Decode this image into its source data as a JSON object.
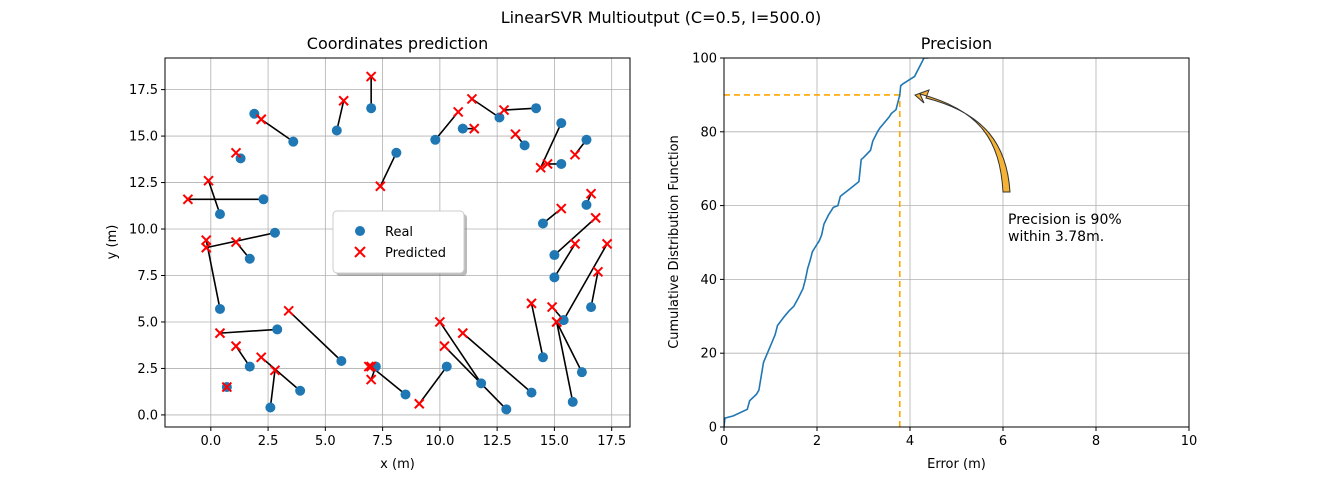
{
  "figure": {
    "suptitle": "LinearSVR Multioutput (C=0.5, I=500.0)"
  },
  "chart_data": [
    {
      "type": "scatter",
      "title": "Coordinates prediction",
      "xlabel": "x (m)",
      "ylabel": "y (m)",
      "xlim": [
        -2.0,
        18.3
      ],
      "ylim": [
        -0.65,
        19.2
      ],
      "xticks": [
        "0.0",
        "2.5",
        "5.0",
        "7.5",
        "10.0",
        "12.5",
        "15.0",
        "17.5"
      ],
      "yticks": [
        "0.0",
        "2.5",
        "5.0",
        "7.5",
        "10.0",
        "12.5",
        "15.0",
        "17.5"
      ],
      "grid": true,
      "legend": {
        "placement": "center",
        "entries": [
          "Real",
          "Predicted"
        ]
      },
      "colors": {
        "real": "#1f77b4",
        "predicted": "#ff0000",
        "link": "#000000"
      },
      "pairs": [
        {
          "real": [
            1.9,
            16.2
          ],
          "pred": [
            2.2,
            15.9
          ]
        },
        {
          "real": [
            3.6,
            14.7
          ],
          "pred": [
            2.2,
            15.9
          ]
        },
        {
          "real": [
            1.3,
            13.8
          ],
          "pred": [
            1.1,
            14.1
          ]
        },
        {
          "real": [
            2.3,
            11.6
          ],
          "pred": [
            -1.0,
            11.6
          ]
        },
        {
          "real": [
            0.4,
            10.8
          ],
          "pred": [
            -0.1,
            12.6
          ]
        },
        {
          "real": [
            2.8,
            9.8
          ],
          "pred": [
            -0.2,
            9.0
          ]
        },
        {
          "real": [
            1.7,
            8.4
          ],
          "pred": [
            1.1,
            9.3
          ]
        },
        {
          "real": [
            0.4,
            5.7
          ],
          "pred": [
            -0.2,
            9.4
          ]
        },
        {
          "real": [
            2.9,
            4.6
          ],
          "pred": [
            0.4,
            4.4
          ]
        },
        {
          "real": [
            1.7,
            2.6
          ],
          "pred": [
            1.1,
            3.7
          ]
        },
        {
          "real": [
            0.7,
            1.5
          ],
          "pred": [
            0.7,
            1.5
          ]
        },
        {
          "real": [
            2.6,
            0.4
          ],
          "pred": [
            2.8,
            2.4
          ]
        },
        {
          "real": [
            3.9,
            1.3
          ],
          "pred": [
            2.2,
            3.1
          ]
        },
        {
          "real": [
            5.7,
            2.9
          ],
          "pred": [
            3.4,
            5.6
          ]
        },
        {
          "real": [
            7.2,
            2.6
          ],
          "pred": [
            7.0,
            1.9
          ]
        },
        {
          "real": [
            7.2,
            2.6
          ],
          "pred": [
            6.9,
            2.6
          ]
        },
        {
          "real": [
            8.5,
            1.1
          ],
          "pred": [
            7.0,
            2.6
          ]
        },
        {
          "real": [
            10.3,
            2.6
          ],
          "pred": [
            9.1,
            0.6
          ]
        },
        {
          "real": [
            11.8,
            1.7
          ],
          "pred": [
            10.0,
            5.0
          ]
        },
        {
          "real": [
            14.0,
            1.2
          ],
          "pred": [
            11.0,
            4.4
          ]
        },
        {
          "real": [
            12.9,
            0.3
          ],
          "pred": [
            10.2,
            3.7
          ]
        },
        {
          "real": [
            14.5,
            3.1
          ],
          "pred": [
            14.0,
            6.0
          ]
        },
        {
          "real": [
            15.4,
            5.1
          ],
          "pred": [
            14.9,
            5.8
          ]
        },
        {
          "real": [
            16.2,
            2.3
          ],
          "pred": [
            15.1,
            5.0
          ]
        },
        {
          "real": [
            15.8,
            0.7
          ],
          "pred": [
            15.1,
            5.0
          ]
        },
        {
          "real": [
            16.6,
            5.8
          ],
          "pred": [
            16.9,
            7.7
          ]
        },
        {
          "real": [
            15.4,
            5.1
          ],
          "pred": [
            17.3,
            9.2
          ]
        },
        {
          "real": [
            15.0,
            7.4
          ],
          "pred": [
            15.9,
            9.2
          ]
        },
        {
          "real": [
            15.0,
            8.6
          ],
          "pred": [
            16.8,
            10.6
          ]
        },
        {
          "real": [
            14.5,
            10.3
          ],
          "pred": [
            15.3,
            11.1
          ]
        },
        {
          "real": [
            16.4,
            11.3
          ],
          "pred": [
            16.6,
            11.9
          ]
        },
        {
          "real": [
            15.3,
            13.5
          ],
          "pred": [
            14.7,
            13.5
          ]
        },
        {
          "real": [
            16.4,
            14.8
          ],
          "pred": [
            15.9,
            14.0
          ]
        },
        {
          "real": [
            15.3,
            15.7
          ],
          "pred": [
            14.4,
            13.3
          ]
        },
        {
          "real": [
            13.7,
            14.5
          ],
          "pred": [
            13.3,
            15.1
          ]
        },
        {
          "real": [
            14.2,
            16.5
          ],
          "pred": [
            12.8,
            16.4
          ]
        },
        {
          "real": [
            12.6,
            16.0
          ],
          "pred": [
            11.4,
            17.0
          ]
        },
        {
          "real": [
            11.0,
            15.4
          ],
          "pred": [
            11.5,
            15.4
          ]
        },
        {
          "real": [
            9.8,
            14.8
          ],
          "pred": [
            10.8,
            16.3
          ]
        },
        {
          "real": [
            8.1,
            14.1
          ],
          "pred": [
            7.4,
            12.3
          ]
        },
        {
          "real": [
            7.0,
            16.5
          ],
          "pred": [
            7.0,
            18.2
          ]
        },
        {
          "real": [
            5.5,
            15.3
          ],
          "pred": [
            5.8,
            16.9
          ]
        }
      ]
    },
    {
      "type": "line",
      "title": "Precision",
      "xlabel": "Error (m)",
      "ylabel": "Cumulative Distribution Function",
      "xlim": [
        0,
        10
      ],
      "ylim": [
        0,
        100
      ],
      "xticks": [
        "0",
        "2",
        "4",
        "6",
        "8",
        "10"
      ],
      "yticks": [
        "0",
        "20",
        "40",
        "60",
        "80",
        "100"
      ],
      "grid": true,
      "colors": {
        "line": "#1f77b4",
        "marker": "#ffa500",
        "arrow_fill": "#f5b335"
      },
      "series": [
        {
          "x": [
            0,
            0.02,
            0.2,
            0.5,
            0.55,
            0.7,
            0.75,
            0.85,
            1.0,
            1.1,
            1.15,
            1.3,
            1.4,
            1.5,
            1.6,
            1.7,
            1.75,
            1.8,
            1.85,
            1.9,
            1.95,
            2.0,
            2.05,
            2.1,
            2.15,
            2.25,
            2.3,
            2.35,
            2.45,
            2.5,
            2.55,
            2.6,
            2.75,
            2.9,
            2.95,
            3.0,
            3.15,
            3.2,
            3.3,
            3.35,
            3.45,
            3.55,
            3.6,
            3.7,
            3.78,
            3.8,
            3.85,
            4.1,
            4.3,
            4.4
          ],
          "y": [
            0,
            2.4,
            3.0,
            4.8,
            7.1,
            8.9,
            10.0,
            17.5,
            22.0,
            25.0,
            27.5,
            30.0,
            31.5,
            32.7,
            35.0,
            37.5,
            40.0,
            43.0,
            45.0,
            47.5,
            48.5,
            49.5,
            50.5,
            52.0,
            55.0,
            57.5,
            58.5,
            59.5,
            60.0,
            62.5,
            63.0,
            63.5,
            65.0,
            66.5,
            72.5,
            73.0,
            75.0,
            77.5,
            80.0,
            81.0,
            82.5,
            84.0,
            85.0,
            86.0,
            90.0,
            92.5,
            93.0,
            95.0,
            100.0,
            100.0
          ]
        }
      ],
      "marker_point": [
        3.78,
        90
      ],
      "annotation": "Precision is 90%\nwithin 3.78m."
    }
  ]
}
